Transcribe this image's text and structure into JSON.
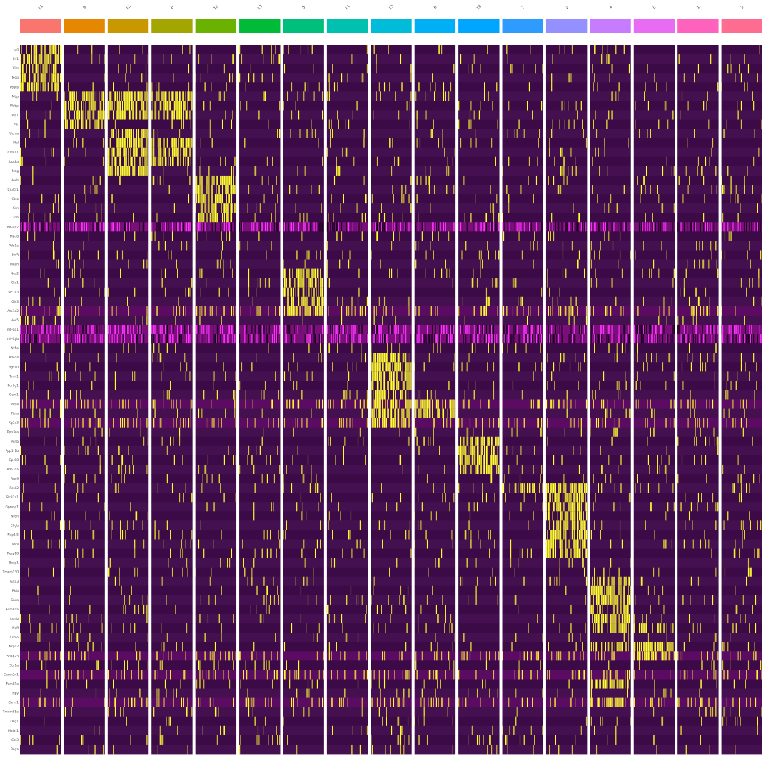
{
  "chart_data": {
    "type": "heatmap",
    "title": "",
    "xlabel": "",
    "ylabel": "",
    "clusters": [
      "11",
      "9",
      "15",
      "8",
      "16",
      "12",
      "5",
      "14",
      "13",
      "6",
      "10",
      "7",
      "2",
      "4",
      "0",
      "1",
      "3"
    ],
    "cluster_colors": [
      "#F8766D",
      "#E58700",
      "#C99800",
      "#A3A500",
      "#6BB100",
      "#00BA38",
      "#00BF7D",
      "#00C0AF",
      "#00BCD8",
      "#00B0F6",
      "#00A5FF",
      "#2E9CFF",
      "#9590FF",
      "#C77CFF",
      "#E76BF3",
      "#FF62BC",
      "#FF6C91"
    ],
    "genes": [
      "Igfl",
      "Fn1",
      "Vim",
      "Mgp",
      "Ptgds",
      "Mbp",
      "Mobp",
      "Plp1",
      "Pllr",
      "Ucma",
      "Mal",
      "Cldn11",
      "Ugt8a",
      "Mag",
      "Hexb",
      "Cx3cr1",
      "Ctss",
      "Csn",
      "C1qb",
      "mt-Co2",
      "Mbd8",
      "Pdn1a",
      "Ivs5",
      "Meah",
      "Nes2",
      "Gja1",
      "Slc1a3",
      "Gls3",
      "Atp1a2",
      "Hes5",
      "mt-Co1",
      "mt-Cyb",
      "Nr5a",
      "Pdcd4",
      "Rgs10",
      "Tnnt1",
      "Pdrhg1",
      "Gem1",
      "Pcp4",
      "Rora",
      "Kg2a3",
      "Ppp3ca",
      "Pcnb",
      "Ppp1r1b",
      "Gpr88",
      "Pde10a",
      "Rgs9",
      "Pcsk2",
      "Slc32a1",
      "Gprasp1",
      "Nrgn",
      "Chgb",
      "Nap1l5",
      "Vsnl",
      "Resp18",
      "Basp1",
      "Tmem130",
      "Gria3",
      "Pkib",
      "Snca",
      "Fam81a",
      "Lsmb",
      "Nefl",
      "Lsmo",
      "Nrgn2",
      "Snap25",
      "Stx1a",
      "Camk2n1",
      "Fam81a",
      "Npy",
      "Chrm1",
      "Tmem88a",
      "Olig1",
      "Malat1",
      "Cst3",
      "Pnga"
    ],
    "value_scale": {
      "min": -2.5,
      "max": 2.5,
      "colors": [
        "#000000",
        "#3B0F4A",
        "#FF00FF",
        "#FFFF00"
      ]
    },
    "marker_blocks": [
      {
        "cluster": "11",
        "genes": [
          "Igfl",
          "Fn1",
          "Vim",
          "Mgp",
          "Ptgds"
        ]
      },
      {
        "cluster": "9",
        "genes": [
          "Mbp",
          "Mobp",
          "Plp1",
          "Pllr"
        ]
      },
      {
        "cluster": "15",
        "genes": [
          "Mbp",
          "Mobp",
          "Plp1",
          "Ucma",
          "Mal",
          "Cldn11",
          "Ugt8a",
          "Mag"
        ]
      },
      {
        "cluster": "8",
        "genes": [
          "Mbp",
          "Mobp",
          "Plp1",
          "Mal",
          "Cldn11",
          "Ugt8a"
        ]
      },
      {
        "cluster": "16",
        "genes": [
          "Hexb",
          "Cx3cr1",
          "Ctss",
          "Csn",
          "C1qb"
        ]
      },
      {
        "cluster": "5",
        "genes": [
          "Nes2",
          "Gja1",
          "Slc1a3",
          "Gls3",
          "Atp1a2"
        ]
      },
      {
        "cluster": "13",
        "genes": [
          "Pdcd4",
          "Rgs10",
          "Tnnt1",
          "Pdrhg1",
          "Gem1",
          "Pcp4",
          "Rora",
          "Kg2a3"
        ]
      },
      {
        "cluster": "6",
        "genes": [
          "Pcp4",
          "Rora"
        ]
      },
      {
        "cluster": "10",
        "genes": [
          "Pcnb",
          "Ppp1r1b",
          "Gpr88",
          "Pde10a"
        ]
      },
      {
        "cluster": "7",
        "genes": [
          "Pcsk2"
        ]
      },
      {
        "cluster": "2",
        "genes": [
          "Pcsk2",
          "Slc32a1",
          "Gprasp1",
          "Nrgn",
          "Chgb",
          "Nap1l5",
          "Vsnl",
          "Resp18"
        ]
      },
      {
        "cluster": "4",
        "genes": [
          "Gria3",
          "Pkib",
          "Snca",
          "Fam81a",
          "Lsmb",
          "Nefl",
          "Nrgn2",
          "Chrm1"
        ]
      },
      {
        "cluster": "0",
        "genes": [
          "Nefl",
          "Nrgn2",
          "Snap25"
        ]
      }
    ],
    "broad_rows": {
      "mt-Co2": "mixed",
      "mt-Co1": "mixed",
      "mt-Cyb": "mixed",
      "Atp1a2": "moderate",
      "Pcp4": "moderate",
      "Kg2a3": "moderate",
      "Snap25": "moderate",
      "Camk2n1": "moderate",
      "Chrm1": "moderate"
    },
    "legend": "none",
    "grid": false
  }
}
